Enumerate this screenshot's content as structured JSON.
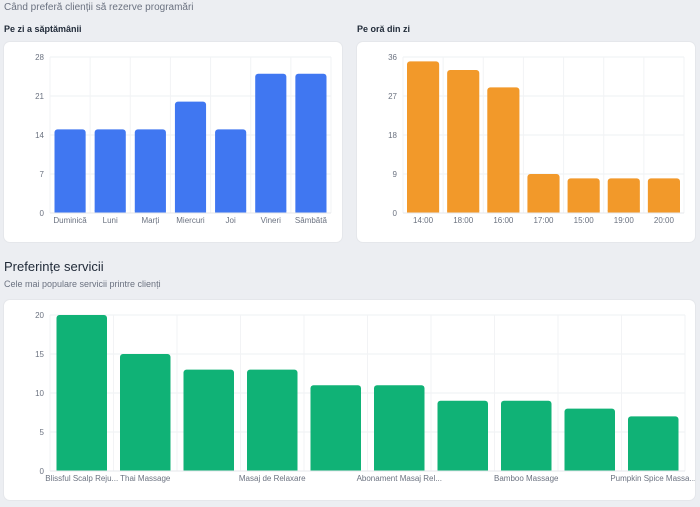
{
  "header": {
    "caption": "Când preferă clienții să rezerve programări"
  },
  "sections": {
    "by_day_label": "Pe zi a săptămânii",
    "by_hour_label": "Pe oră din zi",
    "services_title": "Preferințe servicii",
    "services_subtitle": "Cele mai populare servicii printre clienți"
  },
  "chart_data": [
    {
      "type": "bar",
      "title": "Pe zi a săptămânii",
      "categories": [
        "Duminică",
        "Luni",
        "Marți",
        "Miercuri",
        "Joi",
        "Vineri",
        "Sâmbătă"
      ],
      "values": [
        15,
        15,
        15,
        20,
        15,
        25,
        25
      ],
      "ylim": [
        0,
        28
      ],
      "yticks": [
        0,
        7,
        14,
        21,
        28
      ],
      "color": "#4077f1",
      "grid": true
    },
    {
      "type": "bar",
      "title": "Pe oră din zi",
      "categories": [
        "14:00",
        "18:00",
        "16:00",
        "17:00",
        "15:00",
        "19:00",
        "20:00"
      ],
      "values": [
        35,
        33,
        29,
        9,
        8,
        8,
        8
      ],
      "ylim": [
        0,
        36
      ],
      "yticks": [
        0,
        9,
        18,
        27,
        36
      ],
      "color": "#f2992a",
      "grid": true
    },
    {
      "type": "bar",
      "title": "Preferințe servicii",
      "categories": [
        "Blissful Scalp Reju...",
        "Thai Massage",
        "",
        "Masaj de Relaxare",
        "",
        "Abonament Masaj Rel...",
        "",
        "Bamboo Massage",
        "",
        "Pumpkin Spice Massa..."
      ],
      "values": [
        20,
        15,
        13,
        13,
        11,
        11,
        9,
        9,
        8,
        7
      ],
      "ylim": [
        0,
        20
      ],
      "yticks": [
        0,
        5,
        10,
        15,
        20
      ],
      "color": "#10b276",
      "grid": true
    }
  ]
}
